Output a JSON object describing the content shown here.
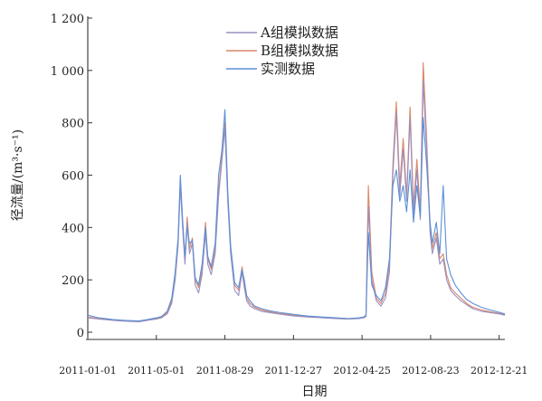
{
  "chart_data": {
    "type": "line",
    "title": "",
    "xlabel": "日期",
    "ylabel": "径流量/(m³·s⁻¹)",
    "ylim": [
      0,
      1200
    ],
    "yticks": [
      0,
      200,
      400,
      600,
      800,
      1000,
      1200
    ],
    "ytick_labels": [
      "0",
      "200",
      "400",
      "600",
      "800",
      "1 000",
      "1 200"
    ],
    "x_range": [
      "2011-01-01",
      "2012-12-31"
    ],
    "xticks": [
      "2011-01-01",
      "2011-05-01",
      "2011-08-29",
      "2011-12-27",
      "2012-04-25",
      "2012-08-23",
      "2012-12-21"
    ],
    "legend_position": "top-center",
    "grid": false,
    "colors": {
      "A": "#9a8fbf",
      "B": "#d9866a",
      "observed": "#5b8fd6"
    },
    "series": [
      {
        "name": "A组模拟数据",
        "x": [
          "2011-01-01",
          "2011-01-20",
          "2011-02-15",
          "2011-03-10",
          "2011-04-01",
          "2011-04-15",
          "2011-05-01",
          "2011-05-10",
          "2011-05-20",
          "2011-05-28",
          "2011-06-03",
          "2011-06-08",
          "2011-06-12",
          "2011-06-16",
          "2011-06-20",
          "2011-06-24",
          "2011-06-28",
          "2011-07-03",
          "2011-07-08",
          "2011-07-14",
          "2011-07-20",
          "2011-07-26",
          "2011-07-30",
          "2011-08-05",
          "2011-08-12",
          "2011-08-18",
          "2011-08-24",
          "2011-08-29",
          "2011-09-03",
          "2011-09-08",
          "2011-09-15",
          "2011-09-22",
          "2011-09-28",
          "2011-10-02",
          "2011-10-06",
          "2011-10-12",
          "2011-10-20",
          "2011-11-01",
          "2011-11-15",
          "2011-12-01",
          "2011-12-27",
          "2012-01-20",
          "2012-02-15",
          "2012-03-10",
          "2012-04-01",
          "2012-04-20",
          "2012-04-28",
          "2012-05-02",
          "2012-05-06",
          "2012-05-12",
          "2012-05-20",
          "2012-05-28",
          "2012-06-05",
          "2012-06-12",
          "2012-06-18",
          "2012-06-24",
          "2012-06-30",
          "2012-07-06",
          "2012-07-12",
          "2012-07-18",
          "2012-07-24",
          "2012-07-30",
          "2012-08-05",
          "2012-08-10",
          "2012-08-16",
          "2012-08-22",
          "2012-08-26",
          "2012-09-02",
          "2012-09-08",
          "2012-09-14",
          "2012-09-20",
          "2012-09-27",
          "2012-10-05",
          "2012-10-15",
          "2012-10-25",
          "2012-11-05",
          "2012-11-20",
          "2012-12-05",
          "2012-12-21",
          "2012-12-31"
        ],
        "values": [
          55,
          50,
          45,
          42,
          40,
          45,
          50,
          55,
          70,
          110,
          200,
          330,
          560,
          400,
          260,
          420,
          300,
          340,
          180,
          150,
          220,
          380,
          260,
          220,
          300,
          520,
          660,
          780,
          500,
          300,
          160,
          140,
          230,
          170,
          120,
          100,
          90,
          80,
          75,
          70,
          62,
          58,
          55,
          52,
          50,
          52,
          55,
          60,
          480,
          200,
          120,
          100,
          130,
          230,
          600,
          840,
          520,
          700,
          500,
          820,
          450,
          620,
          430,
          960,
          700,
          380,
          300,
          360,
          260,
          280,
          200,
          160,
          140,
          120,
          105,
          90,
          80,
          75,
          70,
          65
        ]
      },
      {
        "name": "B组模拟数据",
        "x": [
          "2011-01-01",
          "2011-01-20",
          "2011-02-15",
          "2011-03-10",
          "2011-04-01",
          "2011-04-15",
          "2011-05-01",
          "2011-05-10",
          "2011-05-20",
          "2011-05-28",
          "2011-06-03",
          "2011-06-08",
          "2011-06-12",
          "2011-06-16",
          "2011-06-20",
          "2011-06-24",
          "2011-06-28",
          "2011-07-03",
          "2011-07-08",
          "2011-07-14",
          "2011-07-20",
          "2011-07-26",
          "2011-07-30",
          "2011-08-05",
          "2011-08-12",
          "2011-08-18",
          "2011-08-24",
          "2011-08-29",
          "2011-09-03",
          "2011-09-08",
          "2011-09-15",
          "2011-09-22",
          "2011-09-28",
          "2011-10-02",
          "2011-10-06",
          "2011-10-12",
          "2011-10-20",
          "2011-11-01",
          "2011-11-15",
          "2011-12-01",
          "2011-12-27",
          "2012-01-20",
          "2012-02-15",
          "2012-03-10",
          "2012-04-01",
          "2012-04-20",
          "2012-04-28",
          "2012-05-02",
          "2012-05-06",
          "2012-05-12",
          "2012-05-20",
          "2012-05-28",
          "2012-06-05",
          "2012-06-12",
          "2012-06-18",
          "2012-06-24",
          "2012-06-30",
          "2012-07-06",
          "2012-07-12",
          "2012-07-18",
          "2012-07-24",
          "2012-07-30",
          "2012-08-05",
          "2012-08-10",
          "2012-08-16",
          "2012-08-22",
          "2012-08-26",
          "2012-09-02",
          "2012-09-08",
          "2012-09-14",
          "2012-09-20",
          "2012-09-27",
          "2012-10-05",
          "2012-10-15",
          "2012-10-25",
          "2012-11-05",
          "2012-11-20",
          "2012-12-05",
          "2012-12-21",
          "2012-12-31"
        ],
        "values": [
          58,
          52,
          47,
          44,
          42,
          46,
          52,
          58,
          75,
          120,
          210,
          340,
          580,
          420,
          280,
          440,
          320,
          360,
          200,
          170,
          240,
          420,
          280,
          240,
          320,
          540,
          680,
          800,
          520,
          320,
          180,
          160,
          250,
          180,
          130,
          110,
          95,
          85,
          78,
          72,
          65,
          60,
          57,
          54,
          52,
          54,
          57,
          62,
          560,
          230,
          130,
          110,
          150,
          260,
          640,
          880,
          560,
          740,
          520,
          860,
          480,
          660,
          460,
          1030,
          740,
          400,
          320,
          380,
          280,
          300,
          220,
          170,
          150,
          130,
          110,
          95,
          85,
          78,
          72,
          67
        ]
      },
      {
        "name": "实测数据",
        "x": [
          "2011-01-01",
          "2011-01-20",
          "2011-02-15",
          "2011-03-10",
          "2011-04-01",
          "2011-04-15",
          "2011-05-01",
          "2011-05-10",
          "2011-05-20",
          "2011-05-28",
          "2011-06-03",
          "2011-06-08",
          "2011-06-12",
          "2011-06-16",
          "2011-06-20",
          "2011-06-24",
          "2011-06-28",
          "2011-07-03",
          "2011-07-08",
          "2011-07-14",
          "2011-07-20",
          "2011-07-26",
          "2011-07-30",
          "2011-08-05",
          "2011-08-12",
          "2011-08-18",
          "2011-08-24",
          "2011-08-29",
          "2011-09-03",
          "2011-09-08",
          "2011-09-15",
          "2011-09-22",
          "2011-09-28",
          "2011-10-02",
          "2011-10-06",
          "2011-10-12",
          "2011-10-20",
          "2011-11-01",
          "2011-11-15",
          "2011-12-01",
          "2011-12-27",
          "2012-01-20",
          "2012-02-15",
          "2012-03-10",
          "2012-04-01",
          "2012-04-20",
          "2012-04-28",
          "2012-05-02",
          "2012-05-06",
          "2012-05-12",
          "2012-05-20",
          "2012-05-28",
          "2012-06-05",
          "2012-06-12",
          "2012-06-18",
          "2012-06-24",
          "2012-06-30",
          "2012-07-06",
          "2012-07-12",
          "2012-07-18",
          "2012-07-24",
          "2012-07-30",
          "2012-08-05",
          "2012-08-10",
          "2012-08-16",
          "2012-08-22",
          "2012-08-26",
          "2012-09-02",
          "2012-09-08",
          "2012-09-14",
          "2012-09-20",
          "2012-09-27",
          "2012-10-05",
          "2012-10-15",
          "2012-10-25",
          "2012-11-05",
          "2012-11-20",
          "2012-12-05",
          "2012-12-21",
          "2012-12-31"
        ],
        "values": [
          65,
          55,
          48,
          45,
          43,
          48,
          55,
          60,
          80,
          130,
          230,
          360,
          600,
          430,
          290,
          400,
          340,
          350,
          210,
          180,
          260,
          400,
          290,
          250,
          340,
          600,
          700,
          850,
          540,
          330,
          190,
          170,
          240,
          200,
          140,
          120,
          100,
          90,
          82,
          76,
          68,
          62,
          58,
          55,
          52,
          55,
          58,
          65,
          380,
          180,
          140,
          120,
          170,
          280,
          560,
          620,
          500,
          560,
          460,
          620,
          420,
          560,
          440,
          820,
          640,
          420,
          340,
          420,
          300,
          560,
          280,
          220,
          180,
          150,
          125,
          110,
          95,
          85,
          76,
          70
        ]
      }
    ]
  }
}
